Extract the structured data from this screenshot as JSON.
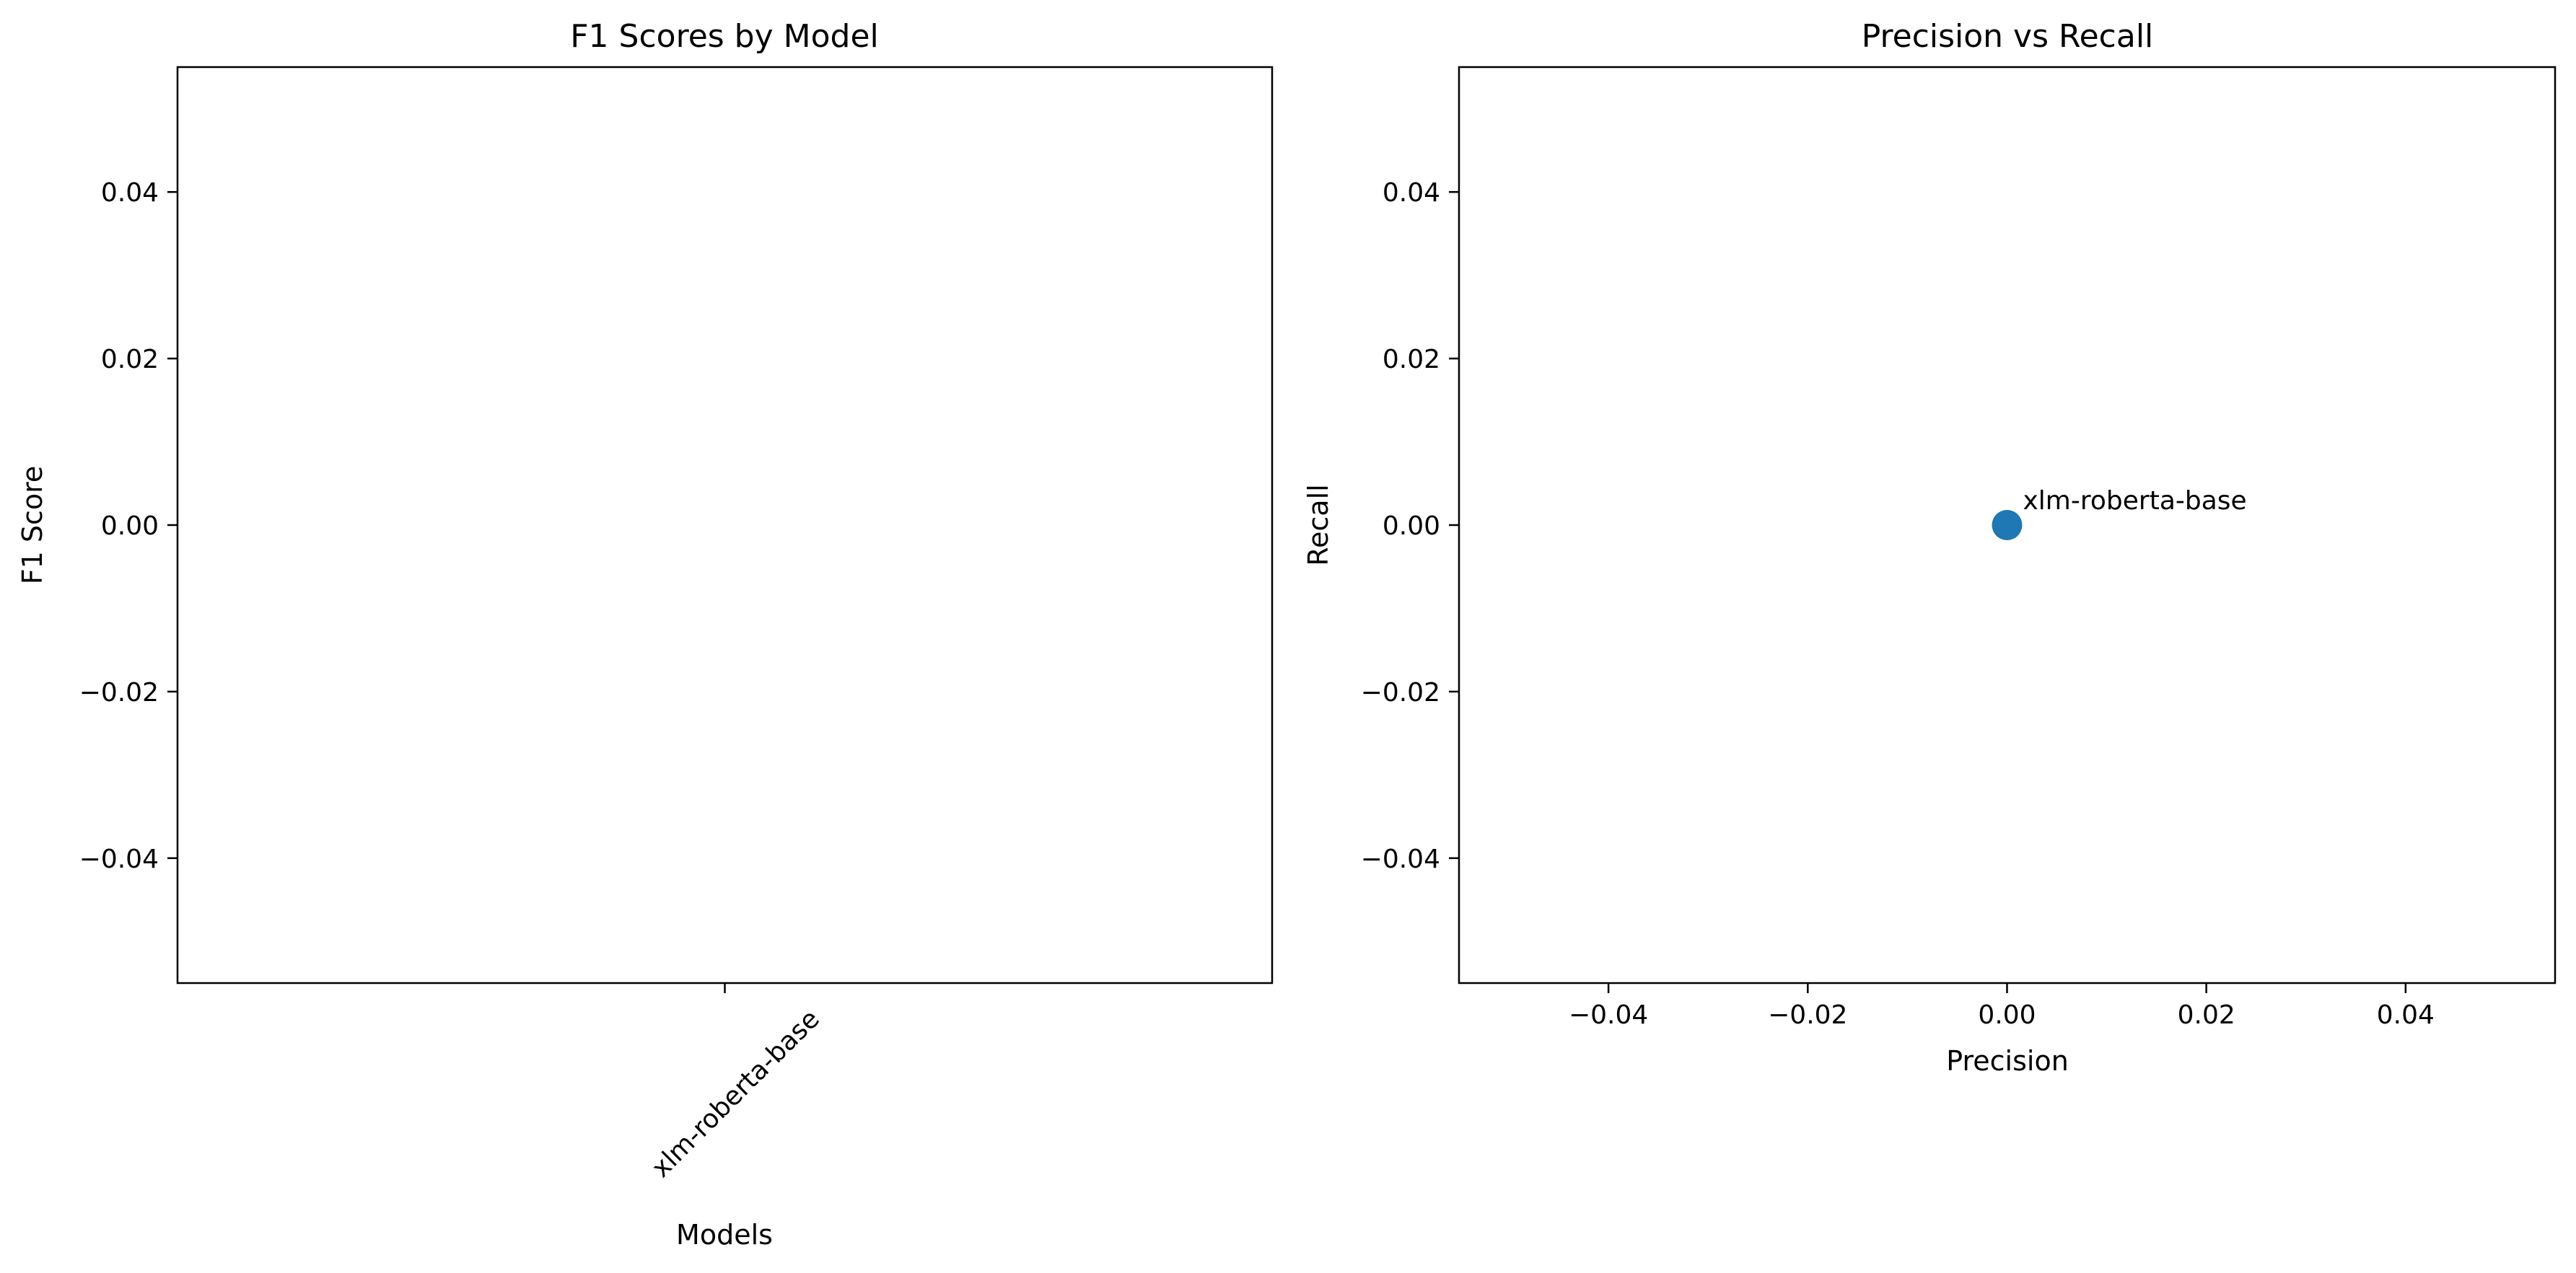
{
  "chart_data": [
    {
      "type": "bar",
      "title": "F1 Scores by Model",
      "xlabel": "Models",
      "ylabel": "F1 Score",
      "categories": [
        "xlm-roberta-base"
      ],
      "values": [
        0.0
      ],
      "ylim": [
        -0.055,
        0.055
      ],
      "yticks": [
        0.04,
        0.02,
        0.0,
        -0.02,
        -0.04
      ],
      "ytick_labels": [
        "0.04",
        "0.02",
        "0.00",
        "−0.02",
        "−0.04"
      ],
      "xtick_rotation": -45,
      "grid": false,
      "legend": "none"
    },
    {
      "type": "scatter",
      "title": "Precision vs Recall",
      "xlabel": "Precision",
      "ylabel": "Recall",
      "points": [
        {
          "x": 0.0,
          "y": 0.0,
          "label": "xlm-roberta-base"
        }
      ],
      "xlim": [
        -0.055,
        0.055
      ],
      "ylim": [
        -0.055,
        0.055
      ],
      "xticks": [
        -0.04,
        -0.02,
        0.0,
        0.02,
        0.04
      ],
      "xtick_labels": [
        "−0.04",
        "−0.02",
        "0.00",
        "0.02",
        "0.04"
      ],
      "yticks": [
        0.04,
        0.02,
        0.0,
        -0.02,
        -0.04
      ],
      "ytick_labels": [
        "0.04",
        "0.02",
        "0.00",
        "−0.02",
        "−0.04"
      ],
      "marker_color": "#1f77b4",
      "grid": false,
      "legend": "none"
    }
  ]
}
